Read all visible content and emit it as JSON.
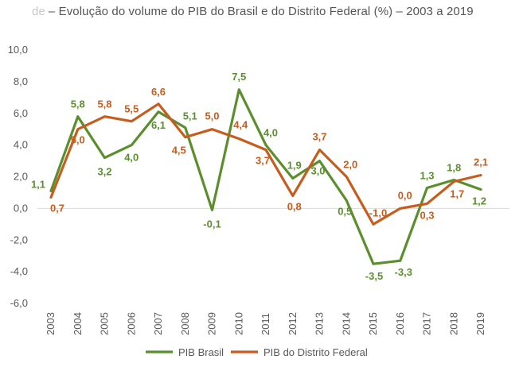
{
  "chart_data": {
    "type": "line",
    "title_prefix": "de",
    "title": "– Evolução do volume do PIB do Brasil e do Distrito Federal (%) – 2003 a 2019",
    "xlabel": "",
    "ylabel": "",
    "ylim": [
      -6.0,
      10.0
    ],
    "yticks": [
      "10,0",
      "8,0",
      "6,0",
      "4,0",
      "2,0",
      "0,0",
      "-2,0",
      "-4,0",
      "-6,0"
    ],
    "ytick_values": [
      10,
      8,
      6,
      4,
      2,
      0,
      -2,
      -4,
      -6
    ],
    "x": [
      "2003",
      "2004",
      "2005",
      "2006",
      "2007",
      "2008",
      "2009",
      "2010",
      "2011",
      "2012",
      "2013",
      "2014",
      "2015",
      "2016",
      "2017",
      "2018",
      "2019"
    ],
    "grid": "horizontal-zero-line-only",
    "legend_position": "bottom",
    "series": [
      {
        "name": "PIB Brasil",
        "color": "#5b8f2d",
        "values": [
          1.1,
          5.8,
          3.2,
          4.0,
          6.1,
          5.1,
          -0.1,
          7.5,
          4.0,
          1.9,
          3.0,
          0.5,
          -3.5,
          -3.3,
          1.3,
          1.8,
          1.2
        ],
        "labels": [
          "1,1",
          "5,8",
          "3,2",
          "4,0",
          "6,1",
          "5,1",
          "-0,1",
          "7,5",
          "4,0",
          "1,9",
          "3,0",
          "0,5",
          "-3,5",
          "-3,3",
          "1,3",
          "1,8",
          "1,2"
        ]
      },
      {
        "name": "PIB do Distrito Federal",
        "color": "#c65d1e",
        "values": [
          0.7,
          5.0,
          5.8,
          5.5,
          6.6,
          4.5,
          5.0,
          4.4,
          3.7,
          0.8,
          3.7,
          2.0,
          -1.0,
          0.0,
          0.3,
          1.7,
          2.1
        ],
        "labels": [
          "0,7",
          "5,0",
          "5,8",
          "5,5",
          "6,6",
          "4,5",
          "5,0",
          "4,4",
          "3,7",
          "0,8",
          "3,7",
          "2,0",
          "-1,0",
          "0,0",
          "0,3",
          "1,7",
          "2,1"
        ]
      }
    ]
  }
}
